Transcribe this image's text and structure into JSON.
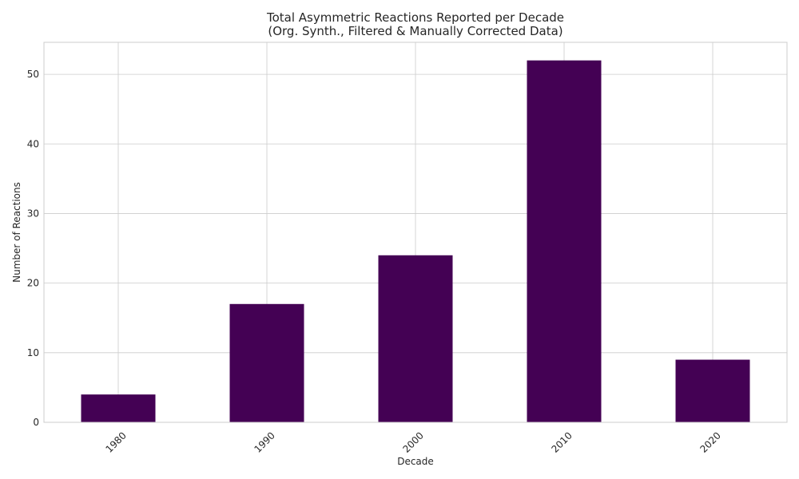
{
  "chart_data": {
    "type": "bar",
    "title": [
      "Total Asymmetric Reactions Reported per Decade",
      "(Org. Synth., Filtered & Manually Corrected Data)"
    ],
    "xlabel": "Decade",
    "ylabel": "Number of Reactions",
    "categories": [
      "1980",
      "1990",
      "2000",
      "2010",
      "2020"
    ],
    "values": [
      4,
      17,
      24,
      52,
      9
    ],
    "ylim": [
      0,
      54.6
    ],
    "yticks": [
      0,
      10,
      20,
      30,
      40,
      50
    ],
    "grid": true,
    "bar_color": "#440154"
  }
}
